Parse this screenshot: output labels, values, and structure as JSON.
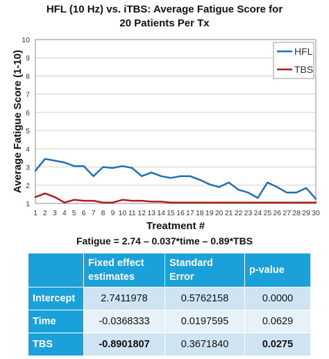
{
  "chart_data": {
    "type": "line",
    "title": [
      "HFL (10 Hz) vs. iTBS: Average Fatigue Score for",
      "20 Patients Per Tx"
    ],
    "xlabel": "Treatment #",
    "ylabel": "Average Fatigue Score (1-10)",
    "xlim": [
      1,
      30
    ],
    "ylim": [
      1,
      10
    ],
    "x": [
      1,
      2,
      3,
      4,
      5,
      6,
      7,
      8,
      9,
      10,
      11,
      12,
      13,
      14,
      15,
      16,
      17,
      18,
      19,
      20,
      21,
      22,
      23,
      24,
      25,
      26,
      27,
      28,
      29,
      30
    ],
    "x_tick_labels": [
      "1",
      "2",
      "3",
      "4",
      "5",
      "6",
      "7",
      "8",
      "9",
      "10",
      "11",
      "12",
      "13",
      "14",
      "15",
      "16",
      "17",
      "18",
      "19",
      "20",
      "21",
      "22",
      "23",
      "24",
      "25",
      "26",
      "27",
      "28",
      "29",
      "30"
    ],
    "y_tick_labels": [
      "1",
      "2",
      "3",
      "4",
      "5",
      "6",
      "7",
      "8",
      "9",
      "10"
    ],
    "grid": true,
    "legend": "top-right",
    "series": [
      {
        "name": "HFL",
        "color": "#1f6fb5",
        "values": [
          2.8,
          3.45,
          3.35,
          3.25,
          3.05,
          3.05,
          2.5,
          3.0,
          2.95,
          3.05,
          2.95,
          2.5,
          2.7,
          2.5,
          2.4,
          2.5,
          2.5,
          2.3,
          2.05,
          1.9,
          2.15,
          1.75,
          1.6,
          1.3,
          2.15,
          1.9,
          1.6,
          1.6,
          1.85,
          1.25
        ]
      },
      {
        "name": "TBS",
        "color": "#b01c1c",
        "values": [
          1.35,
          1.55,
          1.35,
          1.05,
          1.2,
          1.15,
          1.15,
          1.05,
          1.05,
          1.2,
          1.15,
          1.15,
          1.1,
          1.1,
          1.05,
          1.05,
          1.05,
          1.05,
          1.05,
          1.05,
          1.05,
          1.05,
          1.05,
          1.05,
          1.05,
          1.05,
          1.05,
          1.05,
          1.05,
          1.05
        ]
      }
    ]
  },
  "equation": "Fatigue = 2.74 – 0.037*time – 0.89*TBS",
  "table": {
    "headers": [
      "",
      "Fixed effect estimates",
      "Standard Error",
      "p-value"
    ],
    "rows": [
      {
        "label": "Intercept",
        "estimate": "2.7411978",
        "se": "0.5762158",
        "p": "0.0000"
      },
      {
        "label": "Time",
        "estimate": "-0.0368333",
        "se": "0.0197595",
        "p": "0.0629"
      },
      {
        "label": "TBS",
        "estimate": "-0.8901807",
        "se": "0.3671840",
        "p": "0.0275"
      }
    ]
  }
}
